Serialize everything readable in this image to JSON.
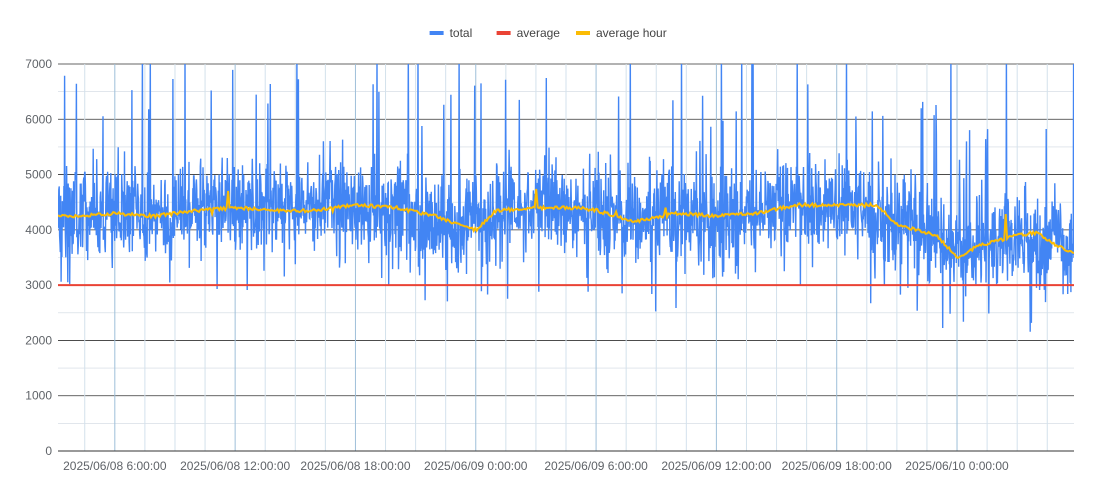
{
  "chart_data": {
    "type": "line",
    "title": "",
    "xlabel": "",
    "ylabel": "",
    "ylim": [
      0,
      7000
    ],
    "y_ticks": [
      0,
      1000,
      2000,
      3000,
      4000,
      5000,
      6000,
      7000
    ],
    "x_tick_labels": [
      "2025/06/08 6:00:00",
      "2025/06/08 12:00:00",
      "2025/06/08 18:00:00",
      "2025/06/09 0:00:00",
      "2025/06/09 6:00:00",
      "2025/06/09 12:00:00",
      "2025/06/09 18:00:00",
      "2025/06/10 0:00:00"
    ],
    "grid": true,
    "legend_position": "top",
    "series": [
      {
        "name": "total",
        "color": "#4285f4",
        "trend": [
          [
            "2025/06/08 3:10",
            4300
          ],
          [
            "2025/06/08 6:00",
            4300
          ],
          [
            "2025/06/08 9:00",
            4300
          ],
          [
            "2025/06/08 12:00",
            4400
          ],
          [
            "2025/06/08 15:00",
            4400
          ],
          [
            "2025/06/08 18:00",
            4400
          ],
          [
            "2025/06/08 21:00",
            4300
          ],
          [
            "2025/06/08 23:00",
            3900
          ],
          [
            "2025/06/09 0:00",
            4200
          ],
          [
            "2025/06/09 3:00",
            4400
          ],
          [
            "2025/06/09 6:00",
            4300
          ],
          [
            "2025/06/09 9:00",
            4200
          ],
          [
            "2025/06/09 12:00",
            4250
          ],
          [
            "2025/06/09 15:00",
            4350
          ],
          [
            "2025/06/09 18:00",
            4450
          ],
          [
            "2025/06/09 21:00",
            4100
          ],
          [
            "2025/06/10 0:00",
            3700
          ],
          [
            "2025/06/10 3:00",
            3800
          ],
          [
            "2025/06/10 5:50",
            3600
          ]
        ]
      },
      {
        "name": "average",
        "color": "#ea4335",
        "values": [
          [
            "2025/06/08 3:10",
            3000
          ],
          [
            "2025/06/10 5:50",
            3000
          ]
        ]
      },
      {
        "name": "average hour",
        "color": "#fbbc04",
        "values": [
          [
            "2025/06/08 3:10",
            4250
          ],
          [
            "2025/06/08 4:00",
            4250
          ],
          [
            "2025/06/08 6:00",
            4300
          ],
          [
            "2025/06/08 8:00",
            4250
          ],
          [
            "2025/06/08 10:00",
            4350
          ],
          [
            "2025/06/08 12:00",
            4400
          ],
          [
            "2025/06/08 14:00",
            4350
          ],
          [
            "2025/06/08 16:00",
            4350
          ],
          [
            "2025/06/08 18:00",
            4450
          ],
          [
            "2025/06/08 20:00",
            4400
          ],
          [
            "2025/06/08 22:00",
            4250
          ],
          [
            "2025/06/08 23:00",
            4100
          ],
          [
            "2025/06/09 0:00",
            4000
          ],
          [
            "2025/06/09 1:00",
            4350
          ],
          [
            "2025/06/09 3:00",
            4400
          ],
          [
            "2025/06/09 5:00",
            4400
          ],
          [
            "2025/06/09 6:00",
            4350
          ],
          [
            "2025/06/09 8:00",
            4150
          ],
          [
            "2025/06/09 10:00",
            4300
          ],
          [
            "2025/06/09 12:00",
            4250
          ],
          [
            "2025/06/09 14:00",
            4300
          ],
          [
            "2025/06/09 16:00",
            4450
          ],
          [
            "2025/06/09 18:00",
            4450
          ],
          [
            "2025/06/09 20:00",
            4450
          ],
          [
            "2025/06/09 21:00",
            4100
          ],
          [
            "2025/06/09 23:00",
            3900
          ],
          [
            "2025/06/10 0:00",
            3500
          ],
          [
            "2025/06/10 1:00",
            3700
          ],
          [
            "2025/06/10 3:00",
            3900
          ],
          [
            "2025/06/10 4:00",
            3950
          ],
          [
            "2025/06/10 5:00",
            3700
          ],
          [
            "2025/06/10 5:50",
            3600
          ]
        ]
      }
    ]
  }
}
